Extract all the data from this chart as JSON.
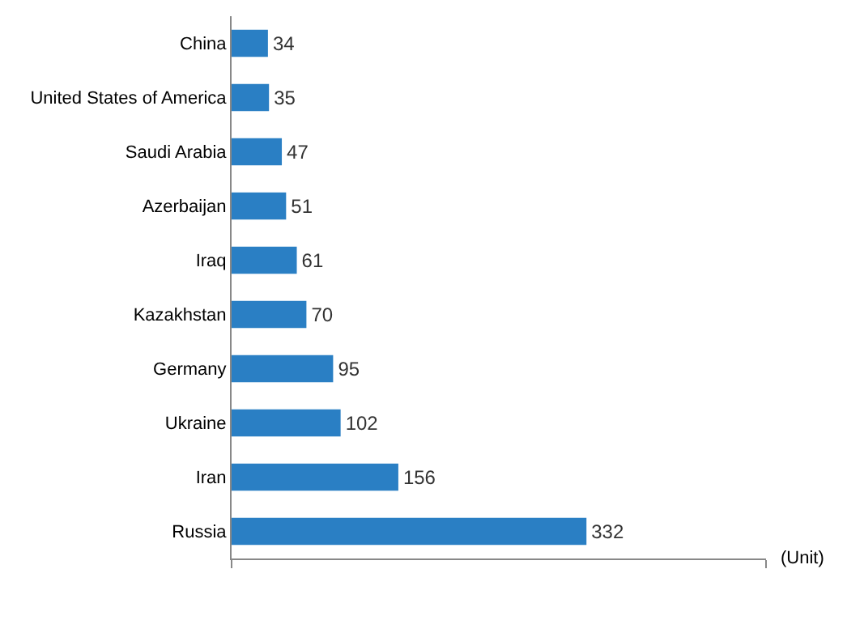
{
  "chart_data": {
    "type": "bar",
    "orientation": "horizontal",
    "categories": [
      "China",
      "United States of America",
      "Saudi Arabia",
      "Azerbaijan",
      "Iraq",
      "Kazakhstan",
      "Germany",
      "Ukraine",
      "Iran",
      "Russia"
    ],
    "values": [
      34,
      35,
      47,
      51,
      61,
      70,
      95,
      102,
      156,
      332
    ],
    "color": "#2a7fc4",
    "xlim": [
      0,
      500
    ],
    "xticks": [
      {
        "value": 0,
        "label": null
      },
      {
        "value": 500,
        "label": null
      }
    ],
    "tick_labels": "y",
    "data_labels": true,
    "annotations": [
      "(Unit)"
    ]
  }
}
